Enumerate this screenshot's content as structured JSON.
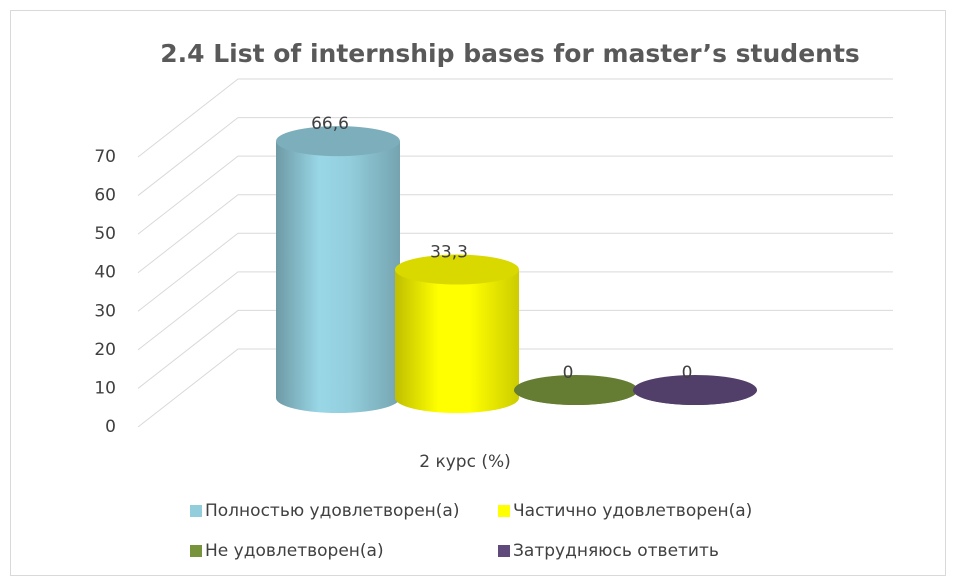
{
  "chart_data": {
    "type": "bar",
    "title": "2.4 List of internship bases for master’s students",
    "categories": [
      "2 курс (%)"
    ],
    "series": [
      {
        "name": "Полностью удовлетворен(а)",
        "color": "#92cddc",
        "values": [
          66.6
        ],
        "value_labels": [
          "66,6"
        ]
      },
      {
        "name": "Частично удовлетворен(а)",
        "color": "#ffff00",
        "values": [
          33.3
        ],
        "value_labels": [
          "33,3"
        ]
      },
      {
        "name": "Не удовлетворен(а)",
        "color": "#77933c",
        "values": [
          0
        ],
        "value_labels": [
          "0"
        ]
      },
      {
        "name": "Затрудняюсь ответить",
        "color": "#604a7b",
        "values": [
          0
        ],
        "value_labels": [
          "0"
        ]
      }
    ],
    "ylim": [
      0,
      70
    ],
    "yticks": [
      0,
      10,
      20,
      30,
      40,
      50,
      60,
      70
    ],
    "grid": true,
    "legend": "bottom"
  }
}
